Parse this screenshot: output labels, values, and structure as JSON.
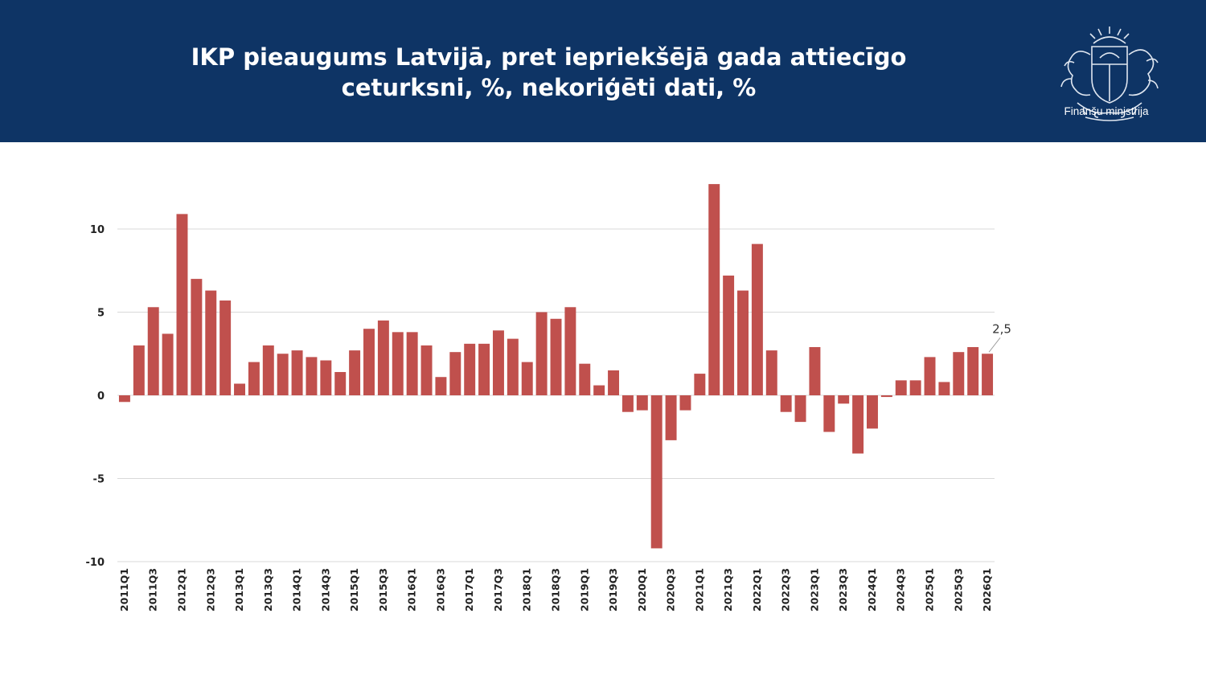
{
  "header": {
    "title_line1": "IKP pieaugums Latvijā, pret iepriekšējā gada attiecīgo",
    "title_line2": "ceturksni, %, nekoriģēti dati, %",
    "org_name": "Finanšu ministrija",
    "background_color": "#0e3465",
    "logo_icon": "coat-of-arms-icon"
  },
  "chart_data": {
    "type": "bar",
    "title": "IKP pieaugums Latvijā, pret iepriekšējā gada attiecīgo ceturksni, %, nekoriģēti dati, %",
    "categories": [
      "2011Q1",
      "2011Q2",
      "2011Q3",
      "2011Q4",
      "2012Q1",
      "2012Q2",
      "2012Q3",
      "2012Q4",
      "2013Q1",
      "2013Q2",
      "2013Q3",
      "2013Q4",
      "2014Q1",
      "2014Q2",
      "2014Q3",
      "2014Q4",
      "2015Q1",
      "2015Q2",
      "2015Q3",
      "2015Q4",
      "2016Q1",
      "2016Q2",
      "2016Q3",
      "2016Q4",
      "2017Q1",
      "2017Q2",
      "2017Q3",
      "2017Q4",
      "2018Q1",
      "2018Q2",
      "2018Q3",
      "2018Q4",
      "2019Q1",
      "2019Q2",
      "2019Q3",
      "2019Q4",
      "2020Q1",
      "2020Q2",
      "2020Q3",
      "2020Q4",
      "2021Q1",
      "2021Q2",
      "2021Q3",
      "2021Q4",
      "2022Q1",
      "2022Q2",
      "2022Q3",
      "2022Q4",
      "2023Q1",
      "2023Q2",
      "2023Q3",
      "2023Q4",
      "2024Q1",
      "2024Q2",
      "2024Q3",
      "2024Q4",
      "2025Q1",
      "2025Q2",
      "2025Q3",
      "2025Q4",
      "2026Q1"
    ],
    "tick_labels": [
      "2011Q1",
      "2011Q3",
      "2012Q1",
      "2012Q3",
      "2013Q1",
      "2013Q3",
      "2014Q1",
      "2014Q3",
      "2015Q1",
      "2015Q3",
      "2016Q1",
      "2016Q3",
      "2017Q1",
      "2017Q3",
      "2018Q1",
      "2018Q3",
      "2019Q1",
      "2019Q3",
      "2020Q1",
      "2020Q3",
      "2021Q1",
      "2021Q3",
      "2022Q1",
      "2022Q3",
      "2023Q1",
      "2023Q3",
      "2024Q1",
      "2024Q3",
      "2025Q1",
      "2025Q3",
      "2026Q1"
    ],
    "values": [
      -0.4,
      3.0,
      5.3,
      3.7,
      10.9,
      7.0,
      6.3,
      5.7,
      0.7,
      2.0,
      3.0,
      2.5,
      2.7,
      2.3,
      2.1,
      1.4,
      2.7,
      4.0,
      4.5,
      3.8,
      3.8,
      3.0,
      1.1,
      2.6,
      3.1,
      3.1,
      3.9,
      3.4,
      2.0,
      5.0,
      4.6,
      5.3,
      1.9,
      0.6,
      1.5,
      -1.0,
      -0.9,
      -9.2,
      -2.7,
      -0.9,
      1.3,
      12.7,
      7.2,
      6.3,
      9.1,
      2.7,
      -1.0,
      -1.6,
      2.9,
      -2.2,
      -0.5,
      -3.5,
      -2.0,
      -0.1,
      0.9,
      0.9,
      2.3,
      0.8,
      2.6,
      2.9,
      2.5
    ],
    "yticks": [
      "10",
      "5",
      "0",
      "-5",
      "-10"
    ],
    "ylim": [
      -10,
      12.7
    ],
    "grid": true,
    "bar_color": "#c0504d",
    "annotation": {
      "category": "2026Q1",
      "label": "2,5"
    },
    "xlabel": "",
    "ylabel": ""
  }
}
